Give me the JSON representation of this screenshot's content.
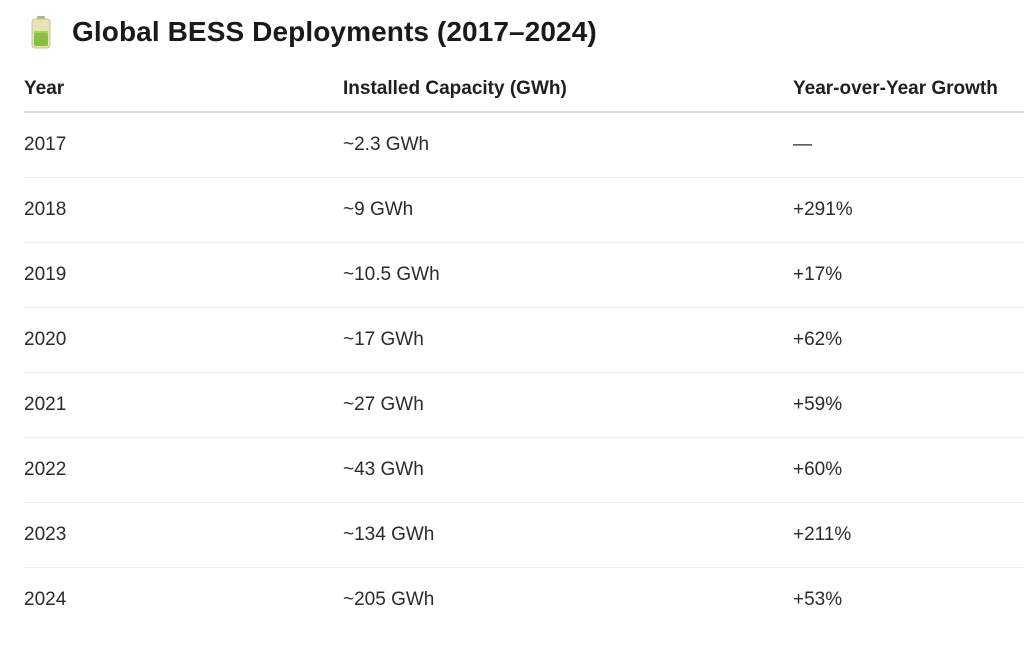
{
  "title": "Global BESS Deployments (2017–2024)",
  "icon": "battery-icon",
  "colors": {
    "battery_body": "#e8e4b8",
    "battery_fill": "#8bbf3f",
    "header_border": "#d9d9d9",
    "row_border": "#ececec"
  },
  "table": {
    "headers": [
      "Year",
      "Installed Capacity (GWh)",
      "Year-over-Year Growth"
    ],
    "rows": [
      {
        "year": "2017",
        "capacity": "~2.3 GWh",
        "growth": "—"
      },
      {
        "year": "2018",
        "capacity": "~9 GWh",
        "growth": "+291%"
      },
      {
        "year": "2019",
        "capacity": "~10.5 GWh",
        "growth": "+17%"
      },
      {
        "year": "2020",
        "capacity": "~17 GWh",
        "growth": "+62%"
      },
      {
        "year": "2021",
        "capacity": "~27 GWh",
        "growth": "+59%"
      },
      {
        "year": "2022",
        "capacity": "~43 GWh",
        "growth": "+60%"
      },
      {
        "year": "2023",
        "capacity": "~134 GWh",
        "growth": "+211%"
      },
      {
        "year": "2024",
        "capacity": "~205 GWh",
        "growth": "+53%"
      }
    ]
  }
}
